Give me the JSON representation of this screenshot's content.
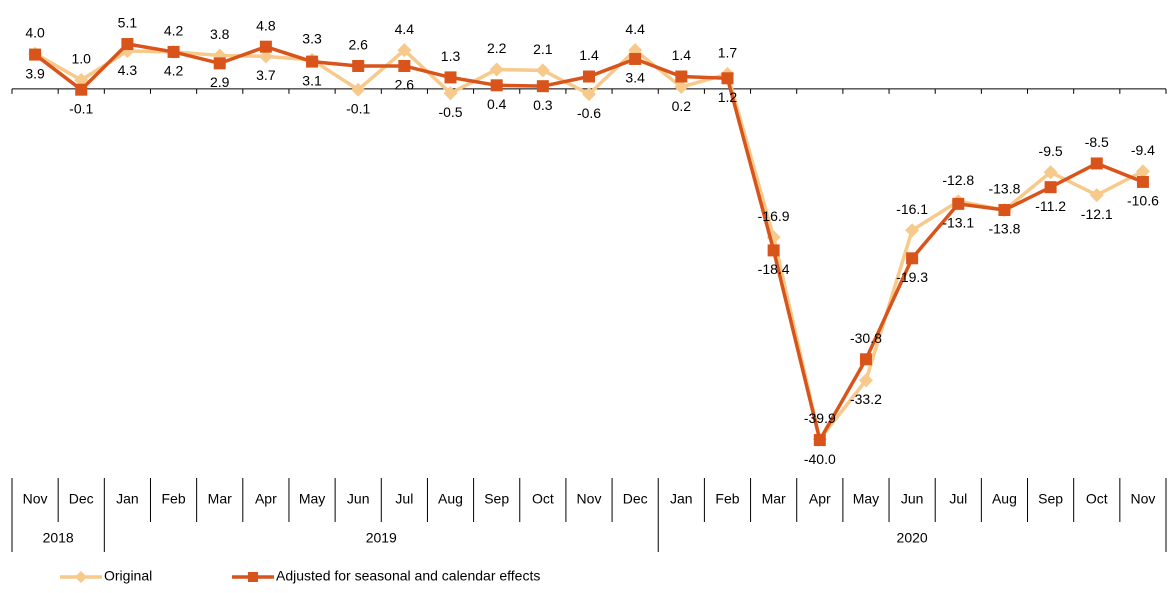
{
  "chart_data": {
    "type": "line",
    "categories": [
      "Nov",
      "Dec",
      "Jan",
      "Feb",
      "Mar",
      "Apr",
      "May",
      "Jun",
      "Jul",
      "Aug",
      "Sep",
      "Oct",
      "Nov",
      "Dec",
      "Jan",
      "Feb",
      "Mar",
      "Apr",
      "May",
      "Jun",
      "Jul",
      "Aug",
      "Sep",
      "Oct",
      "Nov"
    ],
    "category_groups": [
      {
        "label": "2018",
        "span": 2
      },
      {
        "label": "2019",
        "span": 12
      },
      {
        "label": "2020",
        "span": 11
      }
    ],
    "series": [
      {
        "name": "Original",
        "color": "#f7c98a",
        "values": [
          4.0,
          1.0,
          4.3,
          4.2,
          3.8,
          3.7,
          3.3,
          -0.1,
          4.4,
          -0.5,
          2.2,
          2.1,
          -0.6,
          4.4,
          0.2,
          1.7,
          -16.9,
          -39.9,
          -33.2,
          -16.1,
          -12.8,
          -13.8,
          -9.5,
          -12.1,
          -9.4
        ],
        "value_labels": [
          "4.0",
          "1.0",
          "4.3",
          "4.2",
          "3.8",
          "3.7",
          "3.3",
          "-0.1",
          "4.4",
          "-0.5",
          "2.2",
          "2.1",
          "-0.6",
          "4.4",
          "0.2",
          "1.7",
          "-16.9",
          "-39.9",
          "-33.2",
          "-16.1",
          "-12.8",
          "-13.8",
          "-9.5",
          "-12.1",
          "-9.4"
        ]
      },
      {
        "name": "Adjusted for seasonal and calendar effects",
        "color": "#d9541a",
        "values": [
          3.9,
          -0.1,
          5.1,
          4.2,
          2.9,
          4.8,
          3.1,
          2.6,
          2.6,
          1.3,
          0.4,
          0.3,
          1.4,
          3.4,
          1.4,
          1.2,
          -18.4,
          -40.0,
          -30.8,
          -19.3,
          -13.1,
          -13.8,
          -11.2,
          -8.5,
          -10.6
        ],
        "value_labels": [
          "3.9",
          "-0.1",
          "5.1",
          "4.2",
          "2.9",
          "4.8",
          "3.1",
          "2.6",
          "2.6",
          "1.3",
          "0.4",
          "0.3",
          "1.4",
          "3.4",
          "1.4",
          "1.2",
          "-18.4",
          "-40.0",
          "-30.8",
          "-19.3",
          "-13.1",
          "-13.8",
          "-11.2",
          "-8.5",
          "-10.6"
        ]
      }
    ],
    "ylim": [
      -45,
      10
    ],
    "legend": "bottom-left"
  }
}
